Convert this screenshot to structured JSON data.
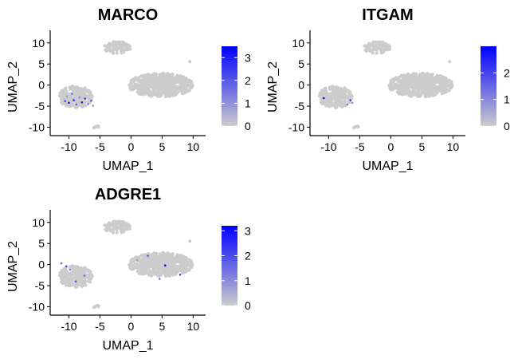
{
  "figure": {
    "background": "#ffffff",
    "point_color_low": "#cccccc",
    "point_color_high": "#0000ff"
  },
  "chart_data": [
    {
      "type": "scatter",
      "title": "MARCO",
      "xlabel": "UMAP_1",
      "ylabel": "UMAP_2",
      "xlim": [
        -13,
        12
      ],
      "ylim": [
        -12,
        13
      ],
      "xticks": [
        -10,
        -5,
        0,
        5,
        10
      ],
      "yticks": [
        -10,
        -5,
        0,
        5,
        10
      ],
      "xtick_labels": [
        "-10",
        "-5",
        "0",
        "5",
        "10"
      ],
      "ytick_labels": [
        "-10",
        "-5",
        "0",
        "5",
        "10"
      ],
      "grid": false,
      "legend": {
        "placement": "right",
        "type": "colorbar",
        "range": [
          0,
          3.5
        ],
        "ticks": [
          0,
          1,
          2,
          3
        ],
        "tick_labels": [
          "0",
          "1",
          "2",
          "3"
        ],
        "low_color": "#cccccc",
        "high_color": "#0000ff"
      },
      "clusters": [
        {
          "name": "top",
          "center": [
            -2.2,
            8.9
          ],
          "radius": [
            2.1,
            1.4
          ],
          "count": 90
        },
        {
          "name": "main",
          "center": [
            4.8,
            0.0
          ],
          "radius": [
            5.2,
            2.8
          ],
          "count": 620
        },
        {
          "name": "left",
          "center": [
            -8.9,
            -2.8
          ],
          "radius": [
            2.7,
            2.6
          ],
          "count": 210
        },
        {
          "name": "stray1",
          "center": [
            -5.6,
            -10.0
          ],
          "radius": [
            0.4,
            0.7
          ],
          "count": 6
        },
        {
          "name": "stray2",
          "center": [
            9.4,
            5.6
          ],
          "radius": [
            0.15,
            0.15
          ],
          "count": 1
        }
      ],
      "expressed_points": [
        {
          "x": -10.6,
          "y": -3.8,
          "v": 2.2
        },
        {
          "x": -10.0,
          "y": -4.2,
          "v": 3.4
        },
        {
          "x": -9.5,
          "y": -2.1,
          "v": 1.3
        },
        {
          "x": -9.2,
          "y": -3.6,
          "v": 2.8
        },
        {
          "x": -8.8,
          "y": -4.6,
          "v": 1.9
        },
        {
          "x": -8.3,
          "y": -2.9,
          "v": 1.1
        },
        {
          "x": -7.9,
          "y": -4.1,
          "v": 3.0
        },
        {
          "x": -7.4,
          "y": -3.2,
          "v": 2.4
        },
        {
          "x": -6.9,
          "y": -4.5,
          "v": 1.6
        },
        {
          "x": -6.4,
          "y": -3.7,
          "v": 2.0
        },
        {
          "x": -6.1,
          "y": -4.9,
          "v": 1.2
        },
        {
          "x": -10.3,
          "y": -2.7,
          "v": 0.9
        }
      ]
    },
    {
      "type": "scatter",
      "title": "ITGAM",
      "xlabel": "UMAP_1",
      "ylabel": "UMAP_2",
      "xlim": [
        -13,
        12
      ],
      "ylim": [
        -12,
        13
      ],
      "xticks": [
        -10,
        -5,
        0,
        5,
        10
      ],
      "yticks": [
        -10,
        -5,
        0,
        5,
        10
      ],
      "xtick_labels": [
        "-10",
        "-5",
        "0",
        "5",
        "10"
      ],
      "ytick_labels": [
        "-10",
        "-5",
        "0",
        "5",
        "10"
      ],
      "grid": false,
      "legend": {
        "placement": "right",
        "type": "colorbar",
        "range": [
          0,
          3.0
        ],
        "ticks": [
          0,
          1,
          2
        ],
        "tick_labels": [
          "0",
          "1",
          "2"
        ],
        "low_color": "#cccccc",
        "high_color": "#0000ff"
      },
      "clusters": [
        {
          "name": "top",
          "center": [
            -2.2,
            8.9
          ],
          "radius": [
            2.1,
            1.4
          ],
          "count": 90
        },
        {
          "name": "main",
          "center": [
            4.8,
            0.0
          ],
          "radius": [
            5.2,
            2.8
          ],
          "count": 620
        },
        {
          "name": "left",
          "center": [
            -8.9,
            -2.8
          ],
          "radius": [
            2.7,
            2.6
          ],
          "count": 210
        },
        {
          "name": "stray1",
          "center": [
            -5.6,
            -10.0
          ],
          "radius": [
            0.4,
            0.7
          ],
          "count": 6
        },
        {
          "name": "stray2",
          "center": [
            9.4,
            5.6
          ],
          "radius": [
            0.15,
            0.15
          ],
          "count": 1
        }
      ],
      "expressed_points": [
        {
          "x": -10.8,
          "y": -3.1,
          "v": 2.9
        },
        {
          "x": -6.5,
          "y": -3.6,
          "v": 2.1
        },
        {
          "x": -7.0,
          "y": -4.6,
          "v": 1.4
        },
        {
          "x": -6.2,
          "y": -4.2,
          "v": 1.0
        }
      ]
    },
    {
      "type": "scatter",
      "title": "ADGRE1",
      "xlabel": "UMAP_1",
      "ylabel": "UMAP_2",
      "xlim": [
        -13,
        12
      ],
      "ylim": [
        -12,
        13
      ],
      "xticks": [
        -10,
        -5,
        0,
        5,
        10
      ],
      "yticks": [
        -10,
        -5,
        0,
        5,
        10
      ],
      "xtick_labels": [
        "-10",
        "-5",
        "0",
        "5",
        "10"
      ],
      "ytick_labels": [
        "-10",
        "-5",
        "0",
        "5",
        "10"
      ],
      "grid": false,
      "legend": {
        "placement": "right",
        "type": "colorbar",
        "range": [
          0,
          3.2
        ],
        "ticks": [
          0,
          1,
          2,
          3
        ],
        "tick_labels": [
          "0",
          "1",
          "2",
          "3"
        ],
        "low_color": "#cccccc",
        "high_color": "#0000ff"
      },
      "clusters": [
        {
          "name": "top",
          "center": [
            -2.2,
            8.9
          ],
          "radius": [
            2.1,
            1.4
          ],
          "count": 90
        },
        {
          "name": "main",
          "center": [
            4.8,
            0.0
          ],
          "radius": [
            5.2,
            2.8
          ],
          "count": 620
        },
        {
          "name": "left",
          "center": [
            -8.9,
            -2.8
          ],
          "radius": [
            2.7,
            2.6
          ],
          "count": 210
        },
        {
          "name": "stray1",
          "center": [
            -5.6,
            -10.0
          ],
          "radius": [
            0.4,
            0.7
          ],
          "count": 6
        },
        {
          "name": "stray2",
          "center": [
            9.4,
            5.6
          ],
          "radius": [
            0.15,
            0.15
          ],
          "count": 1
        }
      ],
      "expressed_points": [
        {
          "x": -11.2,
          "y": 0.3,
          "v": 1.6
        },
        {
          "x": -10.4,
          "y": -0.4,
          "v": 2.4
        },
        {
          "x": -9.8,
          "y": -1.2,
          "v": 1.2
        },
        {
          "x": -8.9,
          "y": -4.0,
          "v": 2.0
        },
        {
          "x": -7.5,
          "y": -2.6,
          "v": 1.5
        },
        {
          "x": 2.7,
          "y": 2.1,
          "v": 1.8
        },
        {
          "x": 5.5,
          "y": -0.2,
          "v": 3.1
        },
        {
          "x": 4.6,
          "y": -3.4,
          "v": 1.3
        },
        {
          "x": 7.9,
          "y": -2.4,
          "v": 2.2
        },
        {
          "x": 1.0,
          "y": 1.0,
          "v": 0.9
        }
      ]
    }
  ]
}
